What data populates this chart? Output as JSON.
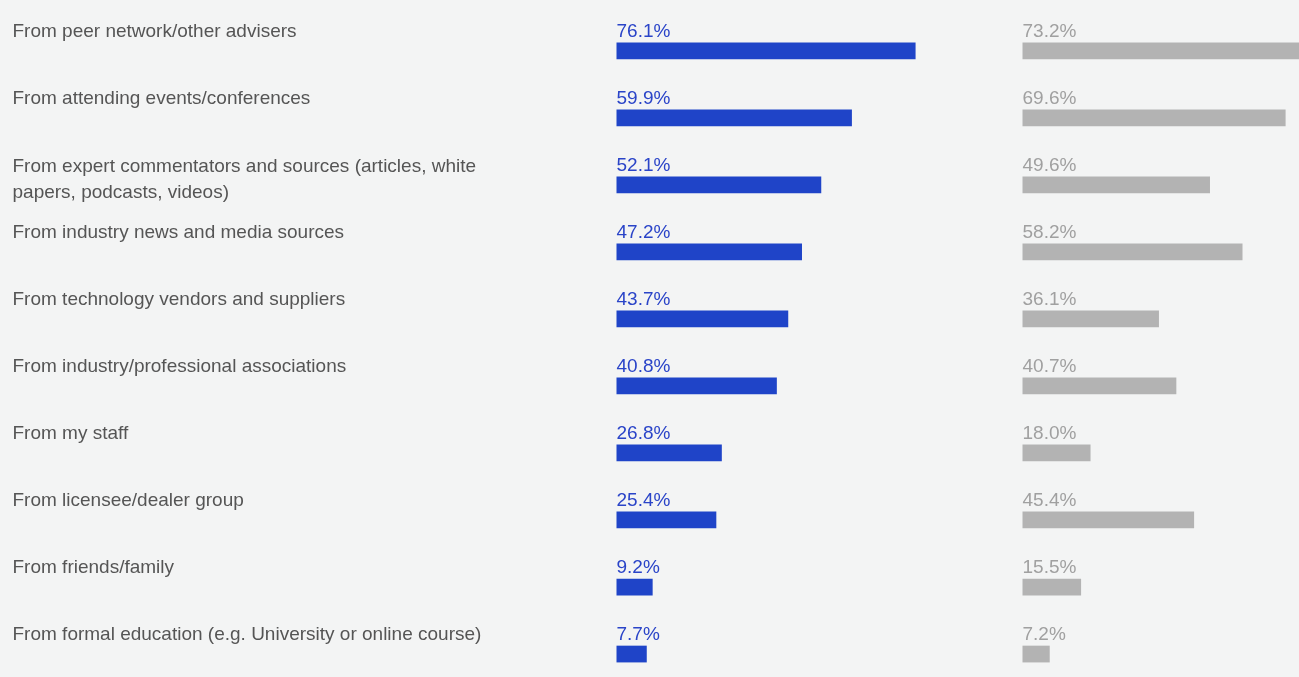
{
  "chart_data": [
    {
      "type": "bar",
      "orientation": "horizontal",
      "tick_labels": "y",
      "grid": false,
      "categories": [
        "From peer network/other advisers",
        "From attending events/conferences",
        "From expert commentators and sources (articles, white\npapers, podcasts, videos)",
        "From industry news and media sources",
        "From technology vendors and suppliers",
        "From industry/professional associations",
        "From my staff",
        "From licensee/dealer group",
        "From friends/family",
        "From formal education (e.g. University or online course)"
      ],
      "series": [
        {
          "color": "#1f44c8",
          "values": [
            76.1,
            59.9,
            52.1,
            47.2,
            43.7,
            40.8,
            26.8,
            25.4,
            9.2,
            7.7
          ],
          "value_labels": [
            "76.1%",
            "59.9%",
            "52.1%",
            "47.2%",
            "43.7%",
            "40.8%",
            "26.8%",
            "25.4%",
            "9.2%",
            "7.7%"
          ]
        }
      ]
    },
    {
      "type": "bar",
      "orientation": "horizontal",
      "tick_labels": false,
      "grid": false,
      "categories": [
        null,
        null,
        null,
        null,
        null,
        null,
        null,
        null,
        null,
        null
      ],
      "series": [
        {
          "color": "#b3b3b3",
          "values": [
            73.2,
            69.6,
            49.6,
            58.2,
            36.1,
            40.7,
            18.0,
            45.4,
            15.5,
            7.2
          ],
          "value_labels": [
            "73.2%",
            "69.6%",
            "49.6%",
            "58.2%",
            "36.1%",
            "40.7%",
            "18.0%",
            "45.4%",
            "15.5%",
            "7.2%"
          ]
        }
      ]
    }
  ]
}
